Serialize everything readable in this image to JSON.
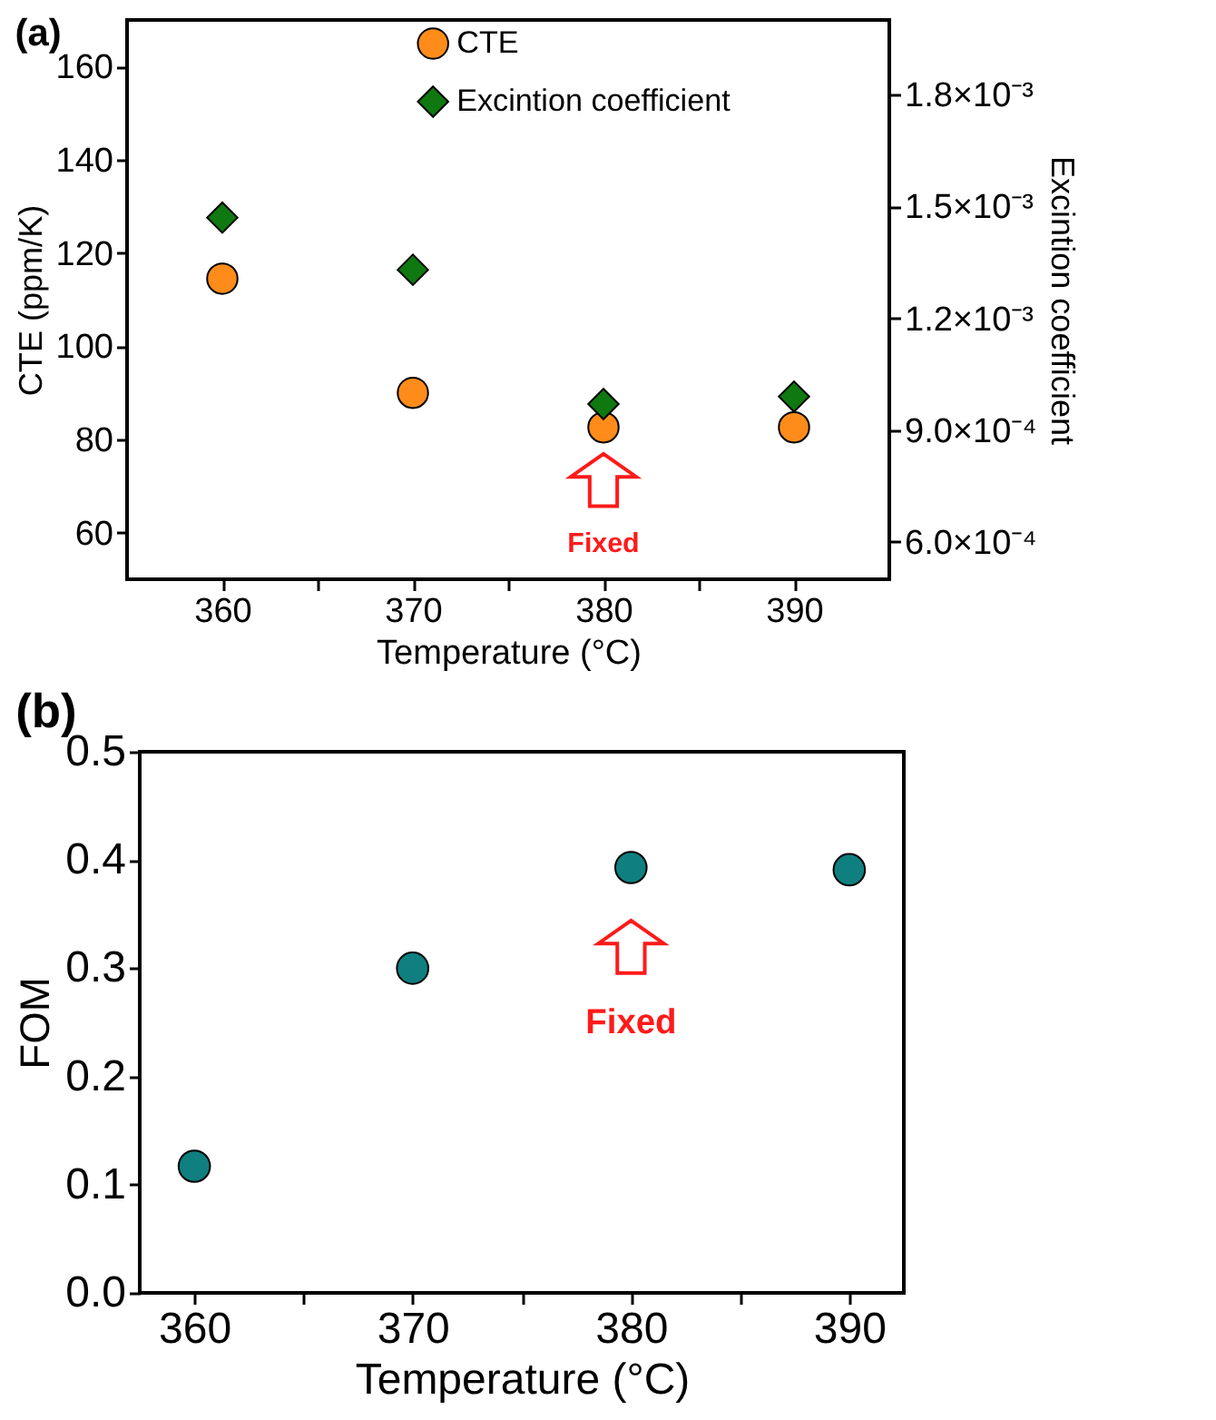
{
  "chart_data": [
    {
      "type": "scatter",
      "title": "(a)",
      "xlabel": "Temperature (°C)",
      "ylabel": "CTE (ppm/K)",
      "y2label": "Excintion coefficient",
      "x": [
        360,
        370,
        380,
        390
      ],
      "xlim": [
        355,
        395
      ],
      "xticks": [
        360,
        {
          "value": 365,
          "label": null
        },
        370,
        {
          "value": 375,
          "label": null
        },
        380,
        {
          "value": 385,
          "label": null
        },
        390
      ],
      "ylim": [
        50,
        170
      ],
      "yticks": [
        60,
        80,
        100,
        120,
        140,
        160
      ],
      "y2lim": [
        0.0005,
        0.002
      ],
      "y2ticks": [
        {
          "value": 0.0006,
          "label": "6.0×10⁻⁴"
        },
        {
          "value": 0.0009,
          "label": "9.0×10⁻⁴"
        },
        {
          "value": 0.0012,
          "label": "1.2×10⁻³"
        },
        {
          "value": 0.0015,
          "label": "1.5×10⁻³"
        },
        {
          "value": 0.0018,
          "label": "1.8×10⁻³"
        }
      ],
      "series": [
        {
          "name": "CTE",
          "color": "#ff8c1a",
          "marker": "circle",
          "values": [
            114.5,
            90,
            82.6,
            82.6
          ]
        },
        {
          "name": "Excintion coefficient",
          "color": "#107810",
          "marker": "diamond",
          "axis": "y2",
          "values": [
            0.00147,
            0.00133,
            0.00097,
            0.00099
          ]
        }
      ],
      "legend": "top",
      "annotations": [
        "Fixed"
      ]
    },
    {
      "type": "scatter",
      "title": "(b)",
      "xlabel": "Temperature (°C)",
      "ylabel": "FOM",
      "x": [
        360,
        370,
        380,
        390
      ],
      "xlim": [
        357.5,
        392.5
      ],
      "xticks": [
        360,
        {
          "value": 365,
          "label": null
        },
        370,
        {
          "value": 375,
          "label": null
        },
        380,
        {
          "value": 385,
          "label": null
        },
        390
      ],
      "ylim": [
        0,
        0.5
      ],
      "yticks": [
        {
          "value": 0,
          "label": "0.0"
        },
        0.1,
        0.2,
        0.3,
        0.4,
        0.5
      ],
      "series": [
        {
          "color": "#0f7f7f",
          "marker": "circle",
          "values": [
            0.117,
            0.3,
            0.393,
            0.391
          ]
        }
      ],
      "annotations": [
        "Fixed"
      ]
    }
  ]
}
